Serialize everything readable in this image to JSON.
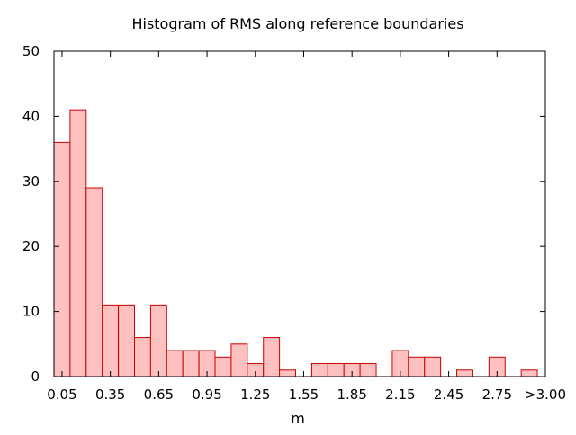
{
  "chart_data": {
    "type": "bar",
    "title": "Histogram of RMS along reference boundaries",
    "xlabel": "m",
    "ylabel": "",
    "ylim": [
      0,
      50
    ],
    "yticks": [
      0,
      10,
      20,
      30,
      40,
      50
    ],
    "xtick_labels": [
      "0.05",
      "0.35",
      "0.65",
      "0.95",
      "1.25",
      "1.55",
      "1.85",
      "2.15",
      "2.45",
      "2.75",
      ">3.00"
    ],
    "bin_width": 0.1,
    "bins": [
      0.05,
      0.15,
      0.25,
      0.35,
      0.45,
      0.55,
      0.65,
      0.75,
      0.85,
      0.95,
      1.05,
      1.15,
      1.25,
      1.35,
      1.45,
      1.55,
      1.65,
      1.75,
      1.85,
      1.95,
      2.05,
      2.15,
      2.25,
      2.35,
      2.45,
      2.55,
      2.65,
      2.75,
      2.85,
      2.95
    ],
    "values": [
      36,
      41,
      29,
      11,
      11,
      6,
      11,
      4,
      4,
      4,
      3,
      5,
      2,
      6,
      1,
      0,
      2,
      2,
      2,
      2,
      0,
      4,
      3,
      3,
      0,
      1,
      0,
      3,
      0,
      1
    ],
    "grid": false,
    "legend": "none",
    "colors": {
      "bar_fill": "#ffc0c0",
      "bar_stroke": "#cc0000",
      "axis": "#000000",
      "background": "#ffffff"
    }
  }
}
